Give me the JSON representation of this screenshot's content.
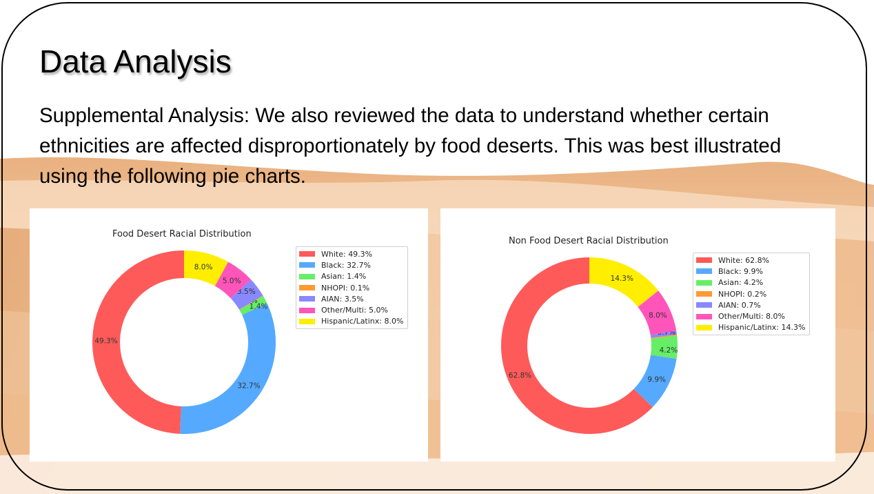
{
  "slide": {
    "title": "Data Analysis",
    "body": "Supplemental Analysis:  We also reviewed the data to understand whether certain ethnicities are affected disproportionately by food deserts. This was best illustrated using the following pie charts."
  },
  "chart_data": [
    {
      "type": "pie",
      "variant": "donut",
      "title": "Food Desert Racial Distribution",
      "labels": [
        "White",
        "Black",
        "Asian",
        "NHOPI",
        "AIAN",
        "Other/Multi",
        "Hispanic/Latinx"
      ],
      "values": [
        49.3,
        32.7,
        1.4,
        0.1,
        3.5,
        5.0,
        8.0
      ],
      "slice_labels": [
        "49.3%",
        "32.7%",
        "1.4%",
        "0.1%",
        "3.5%",
        "5.0%",
        "8.0%"
      ],
      "legend": [
        "White: 49.3%",
        "Black: 32.7%",
        "Asian: 1.4%",
        "NHOPI: 0.1%",
        "AIAN: 3.5%",
        "Other/Multi: 5.0%",
        "Hispanic/Latinx: 8.0%"
      ],
      "colors": [
        "#ff5a5a",
        "#55aaff",
        "#66ee66",
        "#ff9933",
        "#8888ff",
        "#ff55bb",
        "#ffee00"
      ],
      "legend_position": "right",
      "start_angle": "top, counterclockwise"
    },
    {
      "type": "pie",
      "variant": "donut",
      "title": "Non Food Desert Racial Distribution",
      "labels": [
        "White",
        "Black",
        "Asian",
        "NHOPI",
        "AIAN",
        "Other/Multi",
        "Hispanic/Latinx"
      ],
      "values": [
        62.8,
        9.9,
        4.2,
        0.2,
        0.7,
        8.0,
        14.3
      ],
      "slice_labels": [
        "62.8%",
        "9.9%",
        "4.2%",
        "0.2%",
        "0.7%",
        "8.0%",
        "14.3%"
      ],
      "legend": [
        "White: 62.8%",
        "Black: 9.9%",
        "Asian: 4.2%",
        "NHOPI: 0.2%",
        "AIAN: 0.7%",
        "Other/Multi: 8.0%",
        "Hispanic/Latinx: 14.3%"
      ],
      "colors": [
        "#ff5a5a",
        "#55aaff",
        "#66ee66",
        "#ff9933",
        "#8888ff",
        "#ff55bb",
        "#ffee00"
      ],
      "legend_position": "right",
      "start_angle": "top, counterclockwise"
    }
  ]
}
